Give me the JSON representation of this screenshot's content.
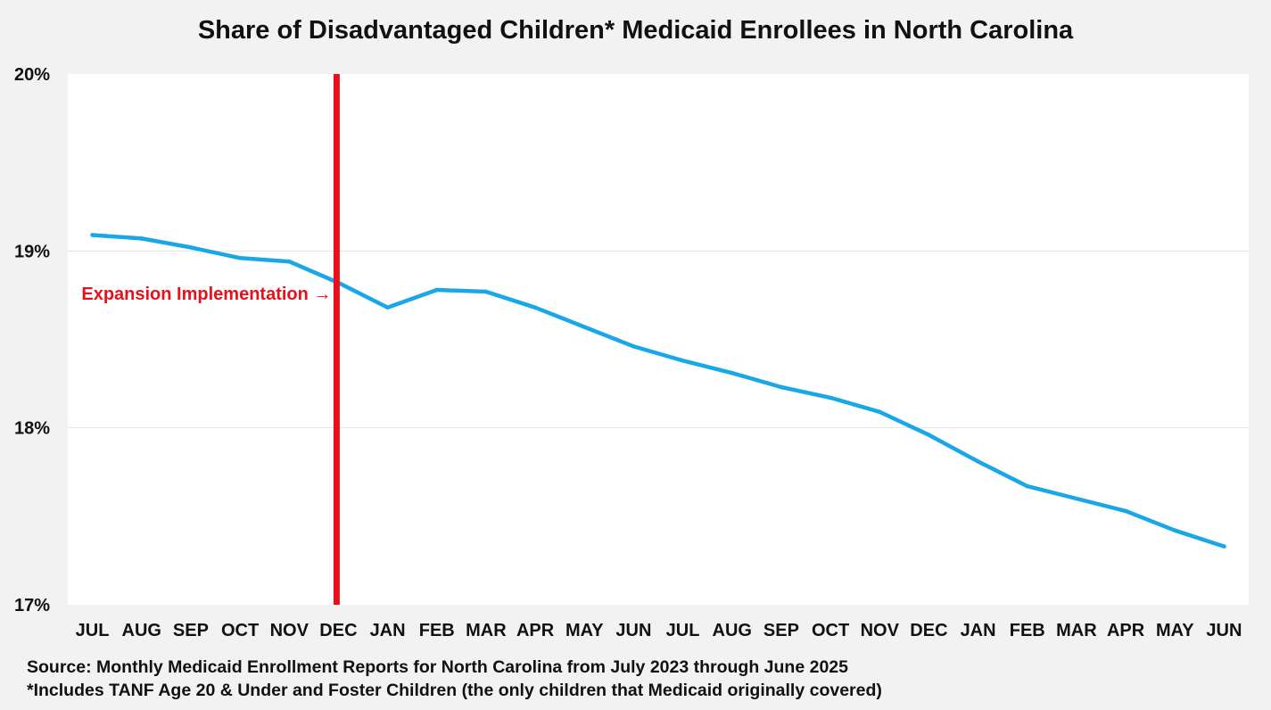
{
  "chart_data": {
    "type": "line",
    "title": "Share of Disadvantaged Children* Medicaid Enrollees in North Carolina",
    "xlabel": "",
    "ylabel": "",
    "categories": [
      "JUL",
      "AUG",
      "SEP",
      "OCT",
      "NOV",
      "DEC",
      "JAN",
      "FEB",
      "MAR",
      "APR",
      "MAY",
      "JUN",
      "JUL",
      "AUG",
      "SEP",
      "OCT",
      "NOV",
      "DEC",
      "JAN",
      "FEB",
      "MAR",
      "APR",
      "MAY",
      "JUN"
    ],
    "series": [
      {
        "values": [
          19.09,
          19.07,
          19.02,
          18.96,
          18.94,
          18.82,
          18.68,
          18.78,
          18.77,
          18.68,
          18.57,
          18.46,
          18.38,
          18.31,
          18.23,
          18.17,
          18.09,
          17.96,
          17.81,
          17.67,
          17.6,
          17.53,
          17.42,
          17.33
        ],
        "color": "#1aa7e8"
      }
    ],
    "ylim": [
      17,
      20
    ],
    "yticks": [
      17,
      18,
      19,
      20
    ],
    "ytick_labels": [
      "17%",
      "18%",
      "19%",
      "20%"
    ],
    "grid": true,
    "legend": "none",
    "marker": {
      "category_index": 5,
      "color": "#e8101c",
      "label": "Expansion Implementation →"
    }
  },
  "notes": {
    "source": "Source: Monthly Medicaid Enrollment Reports for North Carolina  from July 2023 through June 2025",
    "footnote": "*Includes TANF Age 20 & Under and Foster Children (the only children that Medicaid originally covered)"
  }
}
